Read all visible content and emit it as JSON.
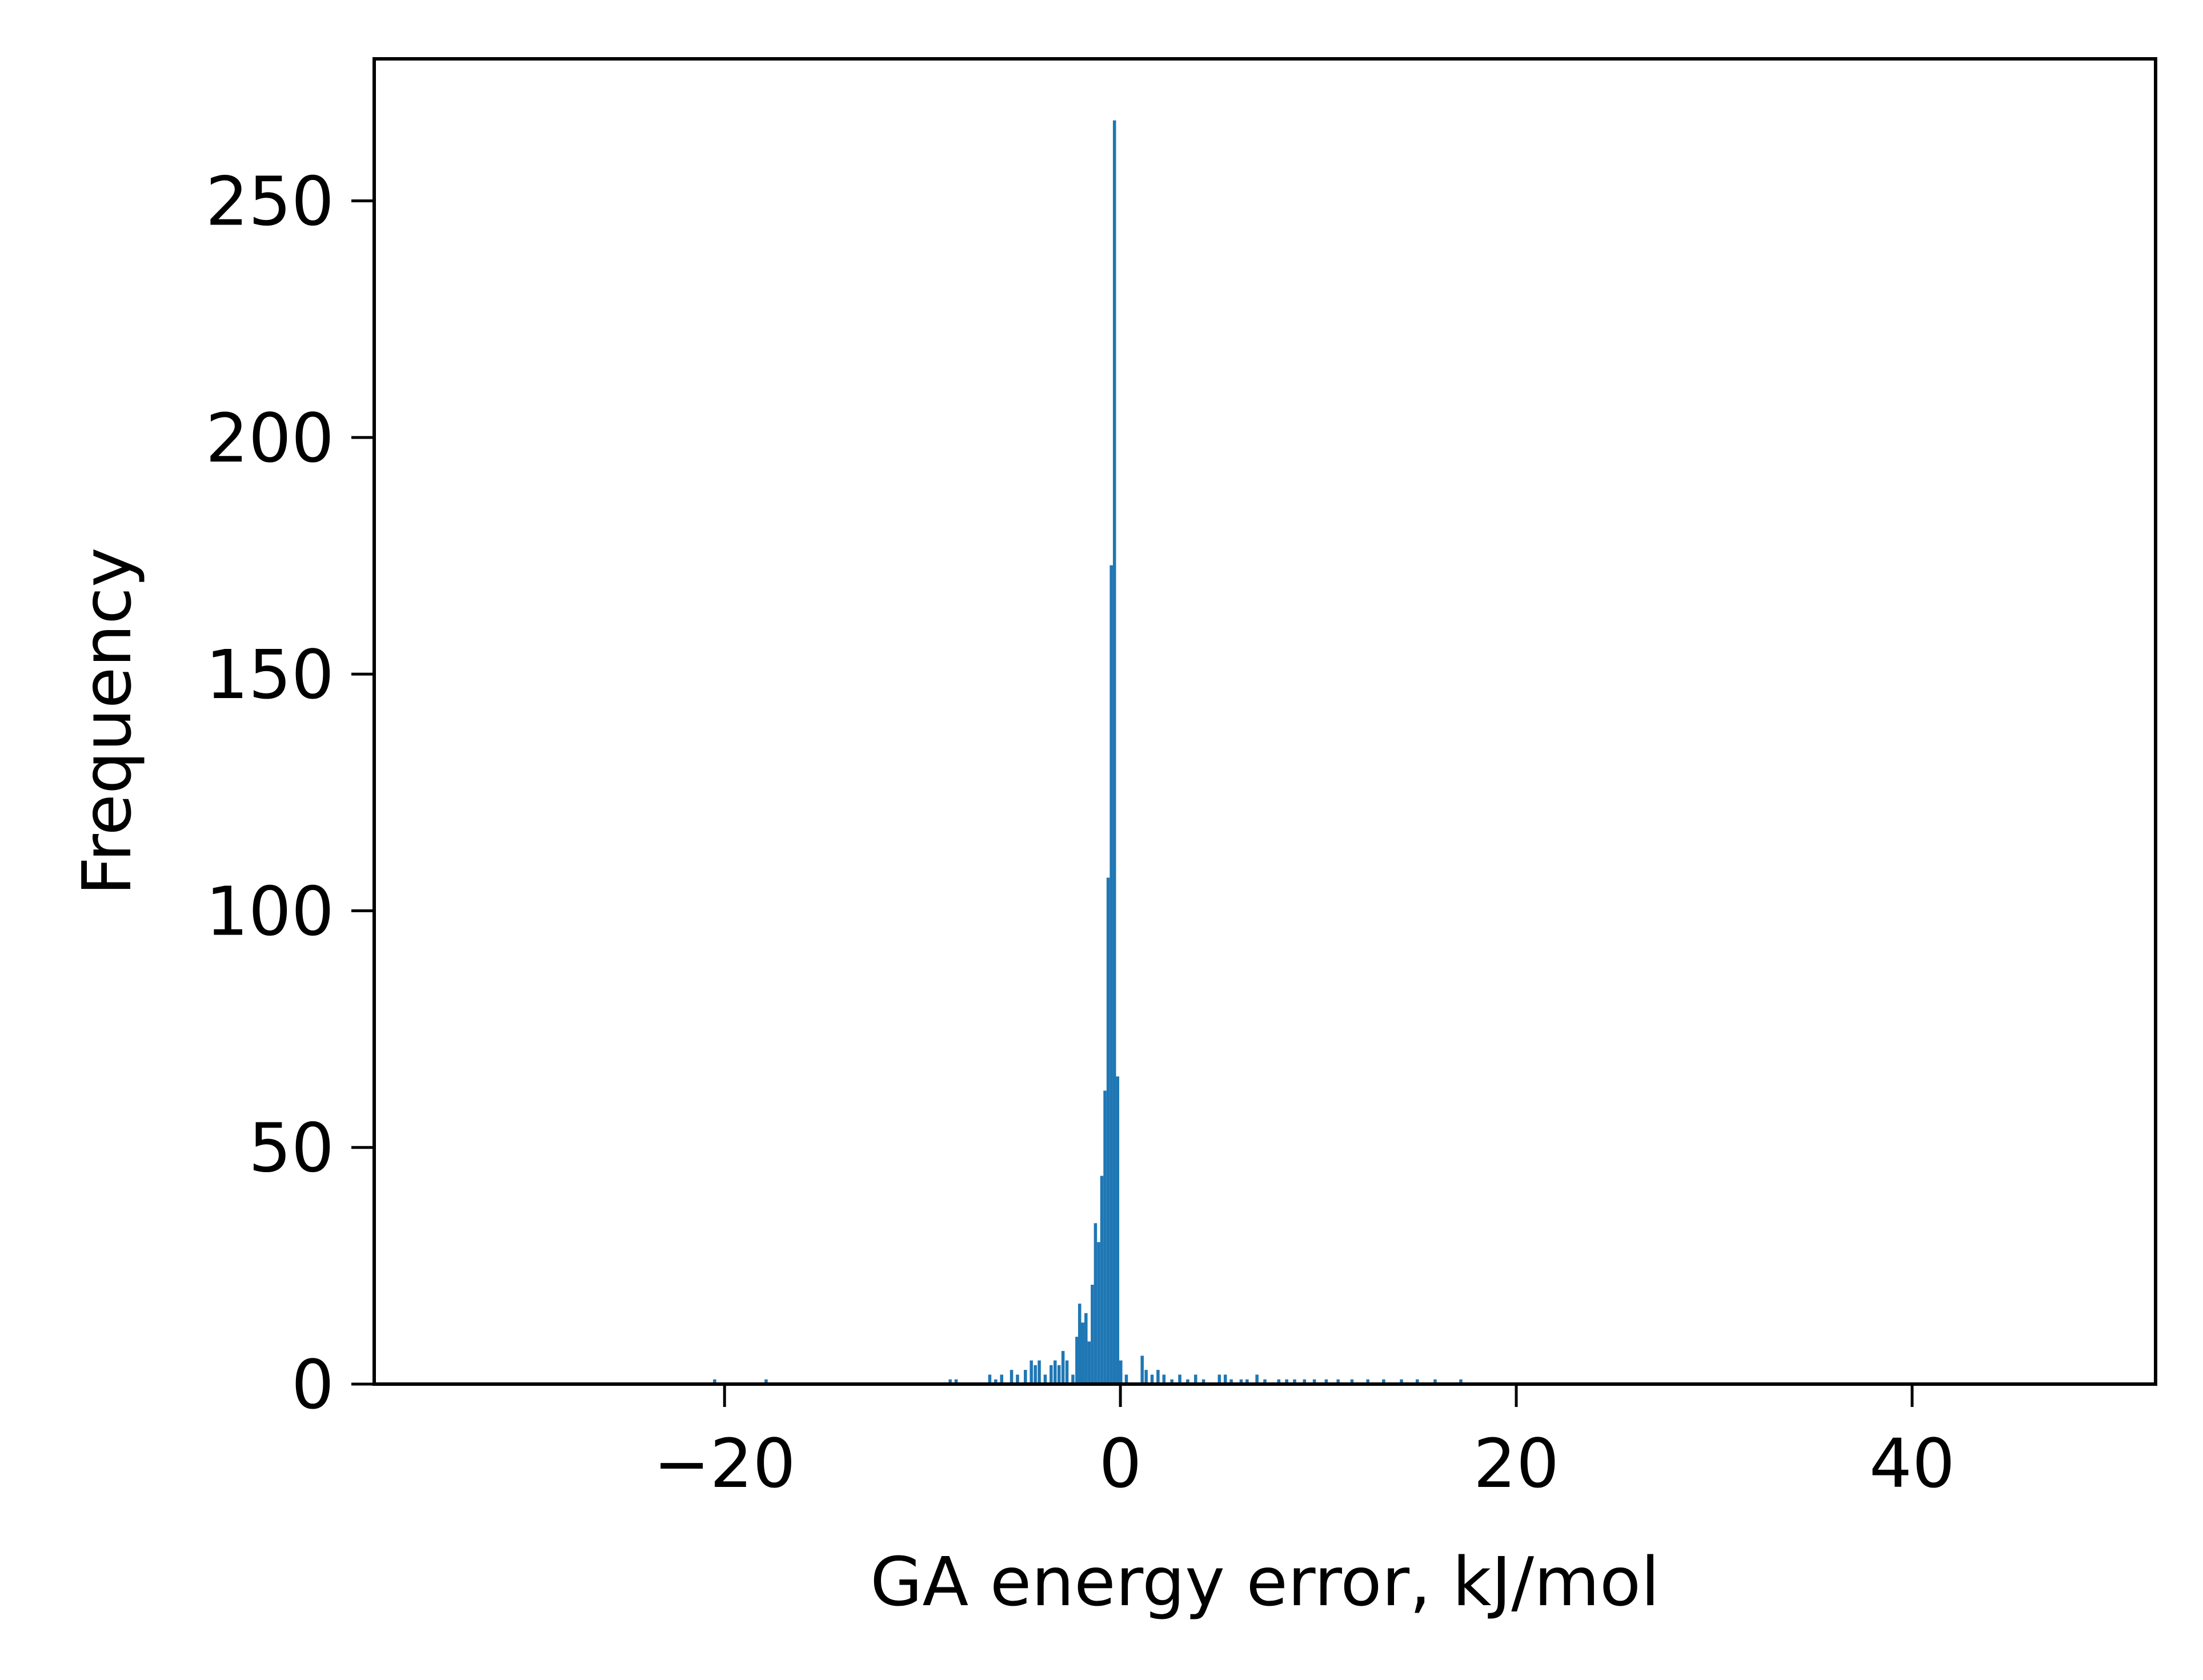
{
  "chart_data": {
    "type": "bar",
    "subtype": "histogram",
    "title": "",
    "xlabel": "GA energy error, kJ/mol",
    "ylabel": "Frequency",
    "xlim": [
      -37.7,
      52.3
    ],
    "ylim": [
      0,
      280
    ],
    "xticks": [
      -20,
      0,
      20,
      40
    ],
    "xtick_labels": [
      "−20",
      "0",
      "20",
      "40"
    ],
    "yticks": [
      0,
      50,
      100,
      150,
      200,
      250
    ],
    "ytick_labels": [
      "0",
      "50",
      "100",
      "150",
      "200",
      "250"
    ],
    "grid": false,
    "legend": "none",
    "bar_color": "#1f77b4",
    "bin_width": 0.16,
    "series": [
      {
        "bins": [
          {
            "x": -20.5,
            "count": 1
          },
          {
            "x": -17.9,
            "count": 1
          },
          {
            "x": -8.6,
            "count": 1
          },
          {
            "x": -8.3,
            "count": 1
          },
          {
            "x": -6.6,
            "count": 2
          },
          {
            "x": -6.3,
            "count": 1
          },
          {
            "x": -6.0,
            "count": 2
          },
          {
            "x": -5.5,
            "count": 3
          },
          {
            "x": -5.2,
            "count": 2
          },
          {
            "x": -4.8,
            "count": 3
          },
          {
            "x": -4.5,
            "count": 5
          },
          {
            "x": -4.3,
            "count": 4
          },
          {
            "x": -4.1,
            "count": 5
          },
          {
            "x": -3.8,
            "count": 2
          },
          {
            "x": -3.5,
            "count": 4
          },
          {
            "x": -3.3,
            "count": 5
          },
          {
            "x": -3.1,
            "count": 4
          },
          {
            "x": -2.9,
            "count": 7
          },
          {
            "x": -2.7,
            "count": 5
          },
          {
            "x": -2.4,
            "count": 2
          },
          {
            "x": -2.2,
            "count": 10
          },
          {
            "x": -2.06,
            "count": 17
          },
          {
            "x": -1.9,
            "count": 13
          },
          {
            "x": -1.74,
            "count": 15
          },
          {
            "x": -1.58,
            "count": 9
          },
          {
            "x": -1.42,
            "count": 21
          },
          {
            "x": -1.26,
            "count": 34
          },
          {
            "x": -1.1,
            "count": 30
          },
          {
            "x": -0.94,
            "count": 44
          },
          {
            "x": -0.78,
            "count": 62
          },
          {
            "x": -0.62,
            "count": 107
          },
          {
            "x": -0.46,
            "count": 173
          },
          {
            "x": -0.3,
            "count": 267
          },
          {
            "x": -0.14,
            "count": 65
          },
          {
            "x": 0.02,
            "count": 5
          },
          {
            "x": 0.3,
            "count": 2
          },
          {
            "x": 1.1,
            "count": 6
          },
          {
            "x": 1.3,
            "count": 3
          },
          {
            "x": 1.6,
            "count": 2
          },
          {
            "x": 1.9,
            "count": 3
          },
          {
            "x": 2.2,
            "count": 2
          },
          {
            "x": 2.6,
            "count": 1
          },
          {
            "x": 3.0,
            "count": 2
          },
          {
            "x": 3.4,
            "count": 1
          },
          {
            "x": 3.8,
            "count": 2
          },
          {
            "x": 4.2,
            "count": 1
          },
          {
            "x": 5.0,
            "count": 2
          },
          {
            "x": 5.3,
            "count": 2
          },
          {
            "x": 5.6,
            "count": 1
          },
          {
            "x": 6.1,
            "count": 1
          },
          {
            "x": 6.4,
            "count": 1
          },
          {
            "x": 6.9,
            "count": 2
          },
          {
            "x": 7.3,
            "count": 1
          },
          {
            "x": 8.0,
            "count": 1
          },
          {
            "x": 8.4,
            "count": 1
          },
          {
            "x": 8.8,
            "count": 1
          },
          {
            "x": 9.3,
            "count": 1
          },
          {
            "x": 9.8,
            "count": 1
          },
          {
            "x": 10.4,
            "count": 1
          },
          {
            "x": 11.0,
            "count": 1
          },
          {
            "x": 11.7,
            "count": 1
          },
          {
            "x": 12.5,
            "count": 1
          },
          {
            "x": 13.3,
            "count": 1
          },
          {
            "x": 14.2,
            "count": 1
          },
          {
            "x": 15.0,
            "count": 1
          },
          {
            "x": 15.9,
            "count": 1
          },
          {
            "x": 17.2,
            "count": 1
          }
        ]
      }
    ]
  }
}
